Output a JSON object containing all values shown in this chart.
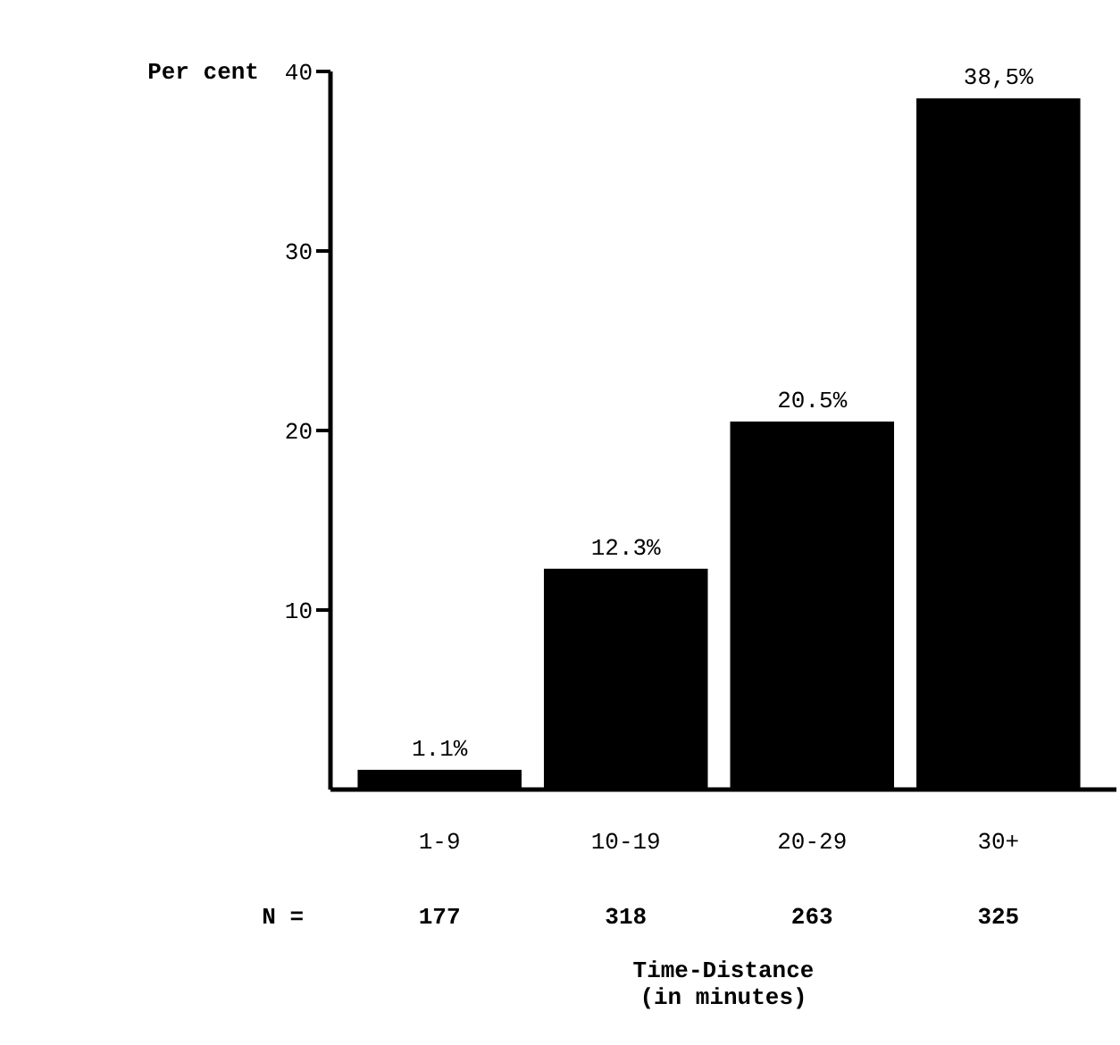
{
  "chart_data": {
    "type": "bar",
    "ylabel": "Per cent",
    "xlabel": "Time-Distance\n(in minutes)",
    "categories": [
      "1-9",
      "10-19",
      "20-29",
      "30+"
    ],
    "values": [
      1.1,
      12.3,
      20.5,
      38.5
    ],
    "value_labels": [
      "1.1%",
      "12.3%",
      "20.5%",
      "38,5%"
    ],
    "color": "#000000",
    "ylim": [
      0,
      40
    ],
    "yticks": [
      10,
      20,
      30,
      40
    ],
    "annotations": [
      "N =",
      "177",
      "318",
      "263",
      "325"
    ]
  }
}
